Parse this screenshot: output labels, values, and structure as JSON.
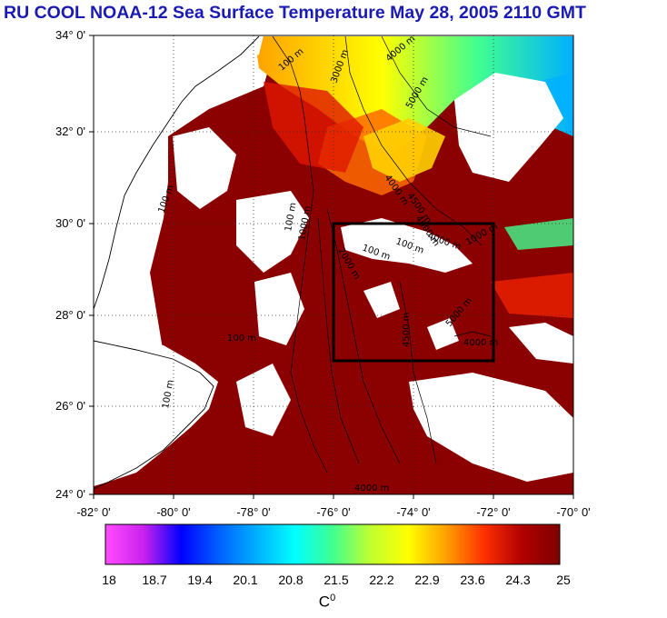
{
  "title": "RU COOL  NOAA-12 Sea Surface Temperature May 28, 2005 2110 GMT",
  "map": {
    "lat_labels": [
      "34° 0'",
      "32° 0'",
      "30° 0'",
      "28° 0'",
      "26° 0'",
      "24° 0'"
    ],
    "lon_labels": [
      "-82° 0'",
      "-80° 0'",
      "-78° 0'",
      "-76° 0'",
      "-74° 0'",
      "-72° 0'",
      "-70° 0'"
    ],
    "contour_labels": [
      "100 m",
      "3000 m",
      "4000 m",
      "5000 m",
      "100 m",
      "4000 m",
      "4500 m",
      "4000 m",
      "100 m",
      "1000 m",
      "2000 m",
      "100 m",
      "100 m",
      "4000 m",
      "1000 m",
      "100 m",
      "4500 m",
      "5000 m",
      "4000 m",
      "4000 m",
      "100 m"
    ],
    "study_box": {
      "lon_range": [
        -76,
        -72
      ],
      "lat_range": [
        27,
        30
      ]
    }
  },
  "colorbar": {
    "tick_labels": [
      "18",
      "18.7",
      "19.4",
      "20.1",
      "20.8",
      "21.5",
      "22.2",
      "22.9",
      "23.6",
      "24.3",
      "25"
    ],
    "unit": "C",
    "unit_sup": "0",
    "colors": [
      "#ff4cff",
      "#cc22ee",
      "#0000ff",
      "#0060ff",
      "#00b0ff",
      "#00ffff",
      "#40ff90",
      "#c0ff30",
      "#ffff00",
      "#ffa000",
      "#ff3000",
      "#b00000",
      "#800000"
    ]
  },
  "colors": {
    "title": "#1a1ab4",
    "warm_water": "#8b0000",
    "cloud_land": "#ffffff",
    "box": "#000000"
  }
}
